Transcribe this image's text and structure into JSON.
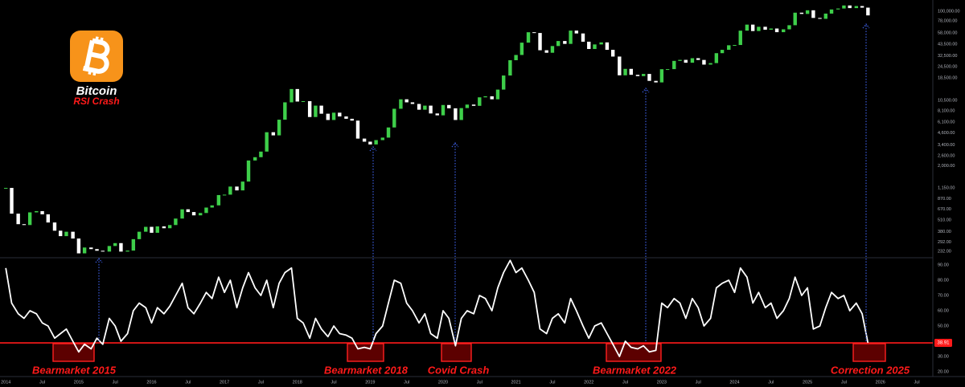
{
  "chart_data": [
    {
      "type": "candle",
      "title": "Bitcoin",
      "subtitle": "RSI Crash",
      "log_scale": true,
      "up_color": "#3ecf4a",
      "down_color": "#ffffff",
      "x": [
        2014.0,
        2014.08,
        2014.17,
        2014.25,
        2014.33,
        2014.42,
        2014.5,
        2014.58,
        2014.67,
        2014.75,
        2014.83,
        2014.92,
        2015.0,
        2015.08,
        2015.17,
        2015.25,
        2015.33,
        2015.42,
        2015.5,
        2015.58,
        2015.67,
        2015.75,
        2015.83,
        2015.92,
        2016.0,
        2016.08,
        2016.17,
        2016.25,
        2016.33,
        2016.42,
        2016.5,
        2016.58,
        2016.67,
        2016.75,
        2016.83,
        2016.92,
        2017.0,
        2017.08,
        2017.17,
        2017.25,
        2017.33,
        2017.42,
        2017.5,
        2017.58,
        2017.67,
        2017.75,
        2017.83,
        2017.92,
        2018.0,
        2018.08,
        2018.17,
        2018.25,
        2018.33,
        2018.42,
        2018.5,
        2018.58,
        2018.67,
        2018.75,
        2018.83,
        2018.92,
        2019.0,
        2019.08,
        2019.17,
        2019.25,
        2019.33,
        2019.42,
        2019.5,
        2019.58,
        2019.67,
        2019.75,
        2019.83,
        2019.92,
        2020.0,
        2020.08,
        2020.17,
        2020.25,
        2020.33,
        2020.42,
        2020.5,
        2020.58,
        2020.67,
        2020.75,
        2020.83,
        2020.92,
        2021.0,
        2021.08,
        2021.17,
        2021.25,
        2021.33,
        2021.42,
        2021.5,
        2021.58,
        2021.67,
        2021.75,
        2021.83,
        2021.92,
        2022.0,
        2022.08,
        2022.17,
        2022.25,
        2022.33,
        2022.42,
        2022.5,
        2022.58,
        2022.67,
        2022.75,
        2022.83,
        2022.92,
        2023.0,
        2023.08,
        2023.17,
        2023.25,
        2023.33,
        2023.42,
        2023.5,
        2023.58,
        2023.67,
        2023.75,
        2023.83,
        2023.92,
        2024.0,
        2024.08,
        2024.17,
        2024.25,
        2024.33,
        2024.42,
        2024.5,
        2024.58,
        2024.67,
        2024.75,
        2024.83,
        2024.92,
        2025.0,
        2025.08,
        2025.17,
        2025.25,
        2025.33,
        2025.42,
        2025.5,
        2025.58,
        2025.67,
        2025.75,
        2025.83
      ],
      "values": [
        1150,
        600,
        460,
        450,
        620,
        640,
        590,
        480,
        390,
        340,
        380,
        320,
        220,
        255,
        245,
        235,
        230,
        265,
        285,
        230,
        236,
        315,
        380,
        430,
        370,
        435,
        415,
        450,
        530,
        670,
        625,
        575,
        610,
        700,
        740,
        960,
        970,
        1190,
        1080,
        1350,
        2300,
        2500,
        2880,
        4700,
        4340,
        6450,
        10000,
        14000,
        10200,
        10300,
        6900,
        9200,
        7500,
        6400,
        7700,
        7000,
        6600,
        6300,
        4000,
        3700,
        3450,
        3850,
        4100,
        5300,
        8500,
        10800,
        10000,
        9600,
        8300,
        9200,
        7550,
        7200,
        9350,
        8600,
        6400,
        8650,
        9450,
        9150,
        11350,
        11650,
        10800,
        13800,
        19700,
        29000,
        33100,
        45200,
        58800,
        57700,
        37300,
        35000,
        41500,
        47100,
        43800,
        61300,
        57000,
        46300,
        38500,
        43200,
        45500,
        37700,
        31800,
        19800,
        23300,
        20050,
        19400,
        20500,
        17200,
        16550,
        23100,
        23150,
        28500,
        29250,
        27200,
        30500,
        29200,
        25950,
        26950,
        34650,
        37700,
        42300,
        42600,
        61200,
        71300,
        60600,
        67500,
        62700,
        64600,
        58900,
        63300,
        70200,
        96400,
        93400,
        102400,
        84400,
        82500,
        94200,
        104600,
        107100,
        115700,
        108200,
        114000,
        109500,
        90000
      ],
      "xlim": [
        2013.92,
        2026.72
      ],
      "ylim": [
        201,
        132800
      ],
      "yticks": [
        {
          "value": 100000,
          "label": "100,000.00"
        },
        {
          "value": 78000,
          "label": "78,000.00"
        },
        {
          "value": 58000,
          "label": "58,000.00"
        },
        {
          "value": 43500,
          "label": "43,500.00"
        },
        {
          "value": 32500,
          "label": "32,500.00"
        },
        {
          "value": 24500,
          "label": "24,500.00"
        },
        {
          "value": 18500,
          "label": "18,500.00"
        },
        {
          "value": 10500,
          "label": "10,500.00"
        },
        {
          "value": 8100,
          "label": "8,100.00"
        },
        {
          "value": 6100,
          "label": "6,100.00"
        },
        {
          "value": 4600,
          "label": "4,600.00"
        },
        {
          "value": 3400,
          "label": "3,400.00"
        },
        {
          "value": 2600,
          "label": "2,600.00"
        },
        {
          "value": 2000,
          "label": "2,000.00"
        },
        {
          "value": 1150,
          "label": "1,150.00"
        },
        {
          "value": 870,
          "label": "870.00"
        },
        {
          "value": 670,
          "label": "670.00"
        },
        {
          "value": 510,
          "label": "510.00"
        },
        {
          "value": 380,
          "label": "380.00"
        },
        {
          "value": 292,
          "label": "292.00"
        },
        {
          "value": 232,
          "label": "232.00"
        }
      ]
    },
    {
      "type": "line",
      "color": "#ffffff",
      "threshold": 38.91,
      "threshold_color": "#ff1a1a",
      "annotations": [
        "Bearmarket 2015",
        "Bearmarket 2018",
        "Covid Crash",
        "Bearmarket 2022",
        "Correction 2025"
      ],
      "x": [
        2014.0,
        2014.08,
        2014.17,
        2014.25,
        2014.33,
        2014.42,
        2014.5,
        2014.58,
        2014.67,
        2014.75,
        2014.83,
        2014.92,
        2015.0,
        2015.08,
        2015.17,
        2015.25,
        2015.33,
        2015.42,
        2015.5,
        2015.58,
        2015.67,
        2015.75,
        2015.83,
        2015.92,
        2016.0,
        2016.08,
        2016.17,
        2016.25,
        2016.33,
        2016.42,
        2016.5,
        2016.58,
        2016.67,
        2016.75,
        2016.83,
        2016.92,
        2017.0,
        2017.08,
        2017.17,
        2017.25,
        2017.33,
        2017.42,
        2017.5,
        2017.58,
        2017.67,
        2017.75,
        2017.83,
        2017.92,
        2018.0,
        2018.08,
        2018.17,
        2018.25,
        2018.33,
        2018.42,
        2018.5,
        2018.58,
        2018.67,
        2018.75,
        2018.83,
        2018.92,
        2019.0,
        2019.08,
        2019.17,
        2019.25,
        2019.33,
        2019.42,
        2019.5,
        2019.58,
        2019.67,
        2019.75,
        2019.83,
        2019.92,
        2020.0,
        2020.08,
        2020.17,
        2020.25,
        2020.33,
        2020.42,
        2020.5,
        2020.58,
        2020.67,
        2020.75,
        2020.83,
        2020.92,
        2021.0,
        2021.08,
        2021.17,
        2021.25,
        2021.33,
        2021.42,
        2021.5,
        2021.58,
        2021.67,
        2021.75,
        2021.83,
        2021.92,
        2022.0,
        2022.08,
        2022.17,
        2022.25,
        2022.33,
        2022.42,
        2022.5,
        2022.58,
        2022.67,
        2022.75,
        2022.83,
        2022.92,
        2023.0,
        2023.08,
        2023.17,
        2023.25,
        2023.33,
        2023.42,
        2023.5,
        2023.58,
        2023.67,
        2023.75,
        2023.83,
        2023.92,
        2024.0,
        2024.08,
        2024.17,
        2024.25,
        2024.33,
        2024.42,
        2024.5,
        2024.58,
        2024.67,
        2024.75,
        2024.83,
        2024.92,
        2025.0,
        2025.08,
        2025.17,
        2025.25,
        2025.33,
        2025.42,
        2025.5,
        2025.58,
        2025.67,
        2025.75,
        2025.83
      ],
      "values": [
        88,
        65,
        58,
        55,
        60,
        58,
        52,
        50,
        42,
        45,
        48,
        40,
        33,
        38,
        35,
        42,
        38,
        55,
        50,
        40,
        45,
        60,
        65,
        62,
        52,
        62,
        58,
        63,
        70,
        78,
        62,
        58,
        65,
        72,
        68,
        82,
        72,
        80,
        62,
        75,
        85,
        75,
        70,
        80,
        62,
        78,
        85,
        88,
        55,
        52,
        42,
        55,
        48,
        43,
        50,
        45,
        44,
        42,
        35,
        36,
        35,
        45,
        50,
        65,
        80,
        78,
        65,
        60,
        52,
        58,
        45,
        42,
        60,
        55,
        37,
        55,
        60,
        58,
        70,
        68,
        60,
        75,
        85,
        93,
        85,
        88,
        80,
        72,
        48,
        45,
        55,
        58,
        52,
        68,
        60,
        50,
        42,
        50,
        52,
        45,
        38,
        30,
        40,
        36,
        35,
        37,
        33,
        34,
        65,
        62,
        68,
        65,
        55,
        68,
        62,
        50,
        55,
        75,
        78,
        80,
        72,
        88,
        82,
        65,
        72,
        62,
        65,
        55,
        60,
        68,
        82,
        70,
        75,
        48,
        50,
        62,
        72,
        68,
        70,
        60,
        65,
        58,
        38.91
      ],
      "xlim": [
        2013.92,
        2026.72
      ],
      "ylim": [
        16.3,
        94.2
      ],
      "yticks": [
        {
          "value": 90,
          "label": "90.00"
        },
        {
          "value": 80,
          "label": "80.00"
        },
        {
          "value": 70,
          "label": "70.00"
        },
        {
          "value": 60,
          "label": "60.00"
        },
        {
          "value": 50,
          "label": "50.00"
        },
        {
          "value": 40,
          "label": "40.00"
        },
        {
          "value": 30,
          "label": "30.00"
        },
        {
          "value": 20,
          "label": "20.00"
        }
      ],
      "xticks": [
        2014,
        {
          "value": 2014.5,
          "label": "Jul"
        },
        2015,
        {
          "value": 2015.5,
          "label": "Jul"
        },
        2016,
        {
          "value": 2016.5,
          "label": "Jul"
        },
        2017,
        {
          "value": 2017.5,
          "label": "Jul"
        },
        2018,
        {
          "value": 2018.5,
          "label": "Jul"
        },
        2019,
        {
          "value": 2019.5,
          "label": "Jul"
        },
        2020,
        {
          "value": 2020.5,
          "label": "Jul"
        },
        2021,
        {
          "value": 2021.5,
          "label": "Jul"
        },
        2022,
        {
          "value": 2022.5,
          "label": "Jul"
        },
        2023,
        {
          "value": 2023.5,
          "label": "Jul"
        },
        2024,
        {
          "value": 2024.5,
          "label": "Jul"
        },
        2025,
        {
          "value": 2025.5,
          "label": "Jul"
        },
        2026,
        {
          "value": 2026.5,
          "label": "Jul"
        }
      ]
    }
  ]
}
